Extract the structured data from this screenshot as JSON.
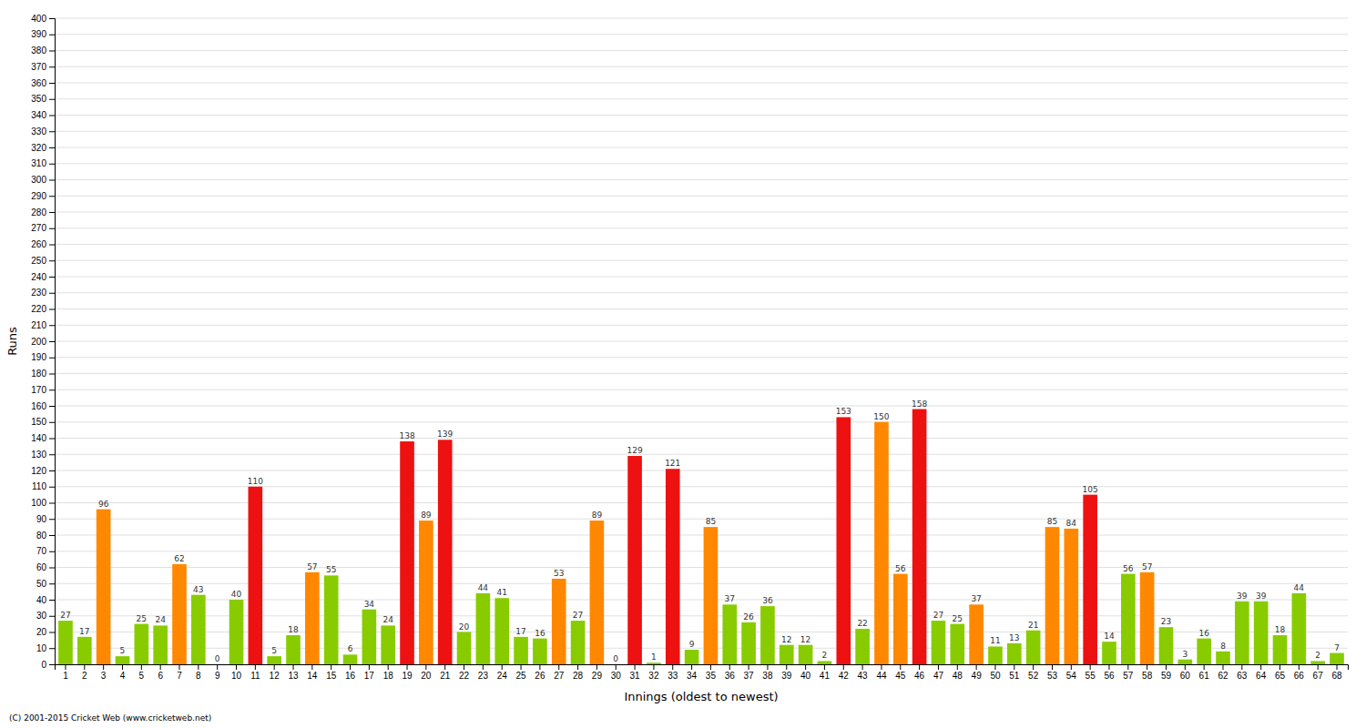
{
  "chart_data": {
    "type": "bar",
    "xlabel": "Innings (oldest to newest)",
    "ylabel": "Runs",
    "annotations": [
      "(C) 2001-2015 Cricket Web (www.cricketweb.net)"
    ],
    "categories": [
      "1",
      "2",
      "3",
      "4",
      "5",
      "6",
      "7",
      "8",
      "9",
      "10",
      "11",
      "12",
      "13",
      "14",
      "15",
      "16",
      "17",
      "18",
      "19",
      "20",
      "21",
      "22",
      "23",
      "24",
      "25",
      "26",
      "27",
      "28",
      "29",
      "30",
      "31",
      "32",
      "33",
      "34",
      "35",
      "36",
      "37",
      "38",
      "39",
      "40",
      "41",
      "42",
      "43",
      "44",
      "45",
      "46",
      "47",
      "48",
      "49",
      "50",
      "51",
      "52",
      "53",
      "54",
      "55",
      "56",
      "57",
      "58",
      "59",
      "60",
      "61",
      "62",
      "63",
      "64",
      "65",
      "66",
      "67",
      "68"
    ],
    "values": [
      27,
      17,
      96,
      5,
      25,
      24,
      62,
      43,
      0,
      40,
      110,
      5,
      18,
      57,
      55,
      6,
      34,
      24,
      138,
      89,
      139,
      20,
      44,
      41,
      17,
      16,
      53,
      27,
      89,
      0,
      129,
      1,
      121,
      9,
      85,
      37,
      26,
      36,
      12,
      12,
      2,
      153,
      22,
      150,
      56,
      158,
      27,
      25,
      37,
      11,
      13,
      21,
      85,
      84,
      105,
      14,
      56,
      57,
      23,
      3,
      16,
      8,
      39,
      39,
      18,
      44,
      2,
      7
    ],
    "colors": [
      "#88cc00",
      "#88cc00",
      "#ff8800",
      "#88cc00",
      "#88cc00",
      "#88cc00",
      "#ff8800",
      "#88cc00",
      "#88cc00",
      "#88cc00",
      "#ee1111",
      "#88cc00",
      "#88cc00",
      "#ff8800",
      "#88cc00",
      "#88cc00",
      "#88cc00",
      "#88cc00",
      "#ee1111",
      "#ff8800",
      "#ee1111",
      "#88cc00",
      "#88cc00",
      "#88cc00",
      "#88cc00",
      "#88cc00",
      "#ff8800",
      "#88cc00",
      "#ff8800",
      "#88cc00",
      "#ee1111",
      "#88cc00",
      "#ee1111",
      "#88cc00",
      "#ff8800",
      "#88cc00",
      "#88cc00",
      "#88cc00",
      "#88cc00",
      "#88cc00",
      "#88cc00",
      "#ee1111",
      "#88cc00",
      "#ff8800",
      "#ff8800",
      "#ee1111",
      "#88cc00",
      "#88cc00",
      "#ff8800",
      "#88cc00",
      "#88cc00",
      "#88cc00",
      "#ff8800",
      "#ff8800",
      "#ee1111",
      "#88cc00",
      "#88cc00",
      "#ff8800",
      "#88cc00",
      "#88cc00",
      "#88cc00",
      "#88cc00",
      "#88cc00",
      "#88cc00",
      "#88cc00",
      "#88cc00",
      "#88cc00",
      "#88cc00"
    ],
    "ylim": [
      0,
      400
    ],
    "yticks": [
      0,
      10,
      20,
      30,
      40,
      50,
      60,
      70,
      80,
      90,
      100,
      110,
      120,
      130,
      140,
      150,
      160,
      170,
      180,
      190,
      200,
      210,
      220,
      230,
      240,
      250,
      260,
      270,
      280,
      290,
      300,
      310,
      320,
      330,
      340,
      350,
      360,
      370,
      380,
      390,
      400
    ],
    "grid": true,
    "data_labels": true
  }
}
